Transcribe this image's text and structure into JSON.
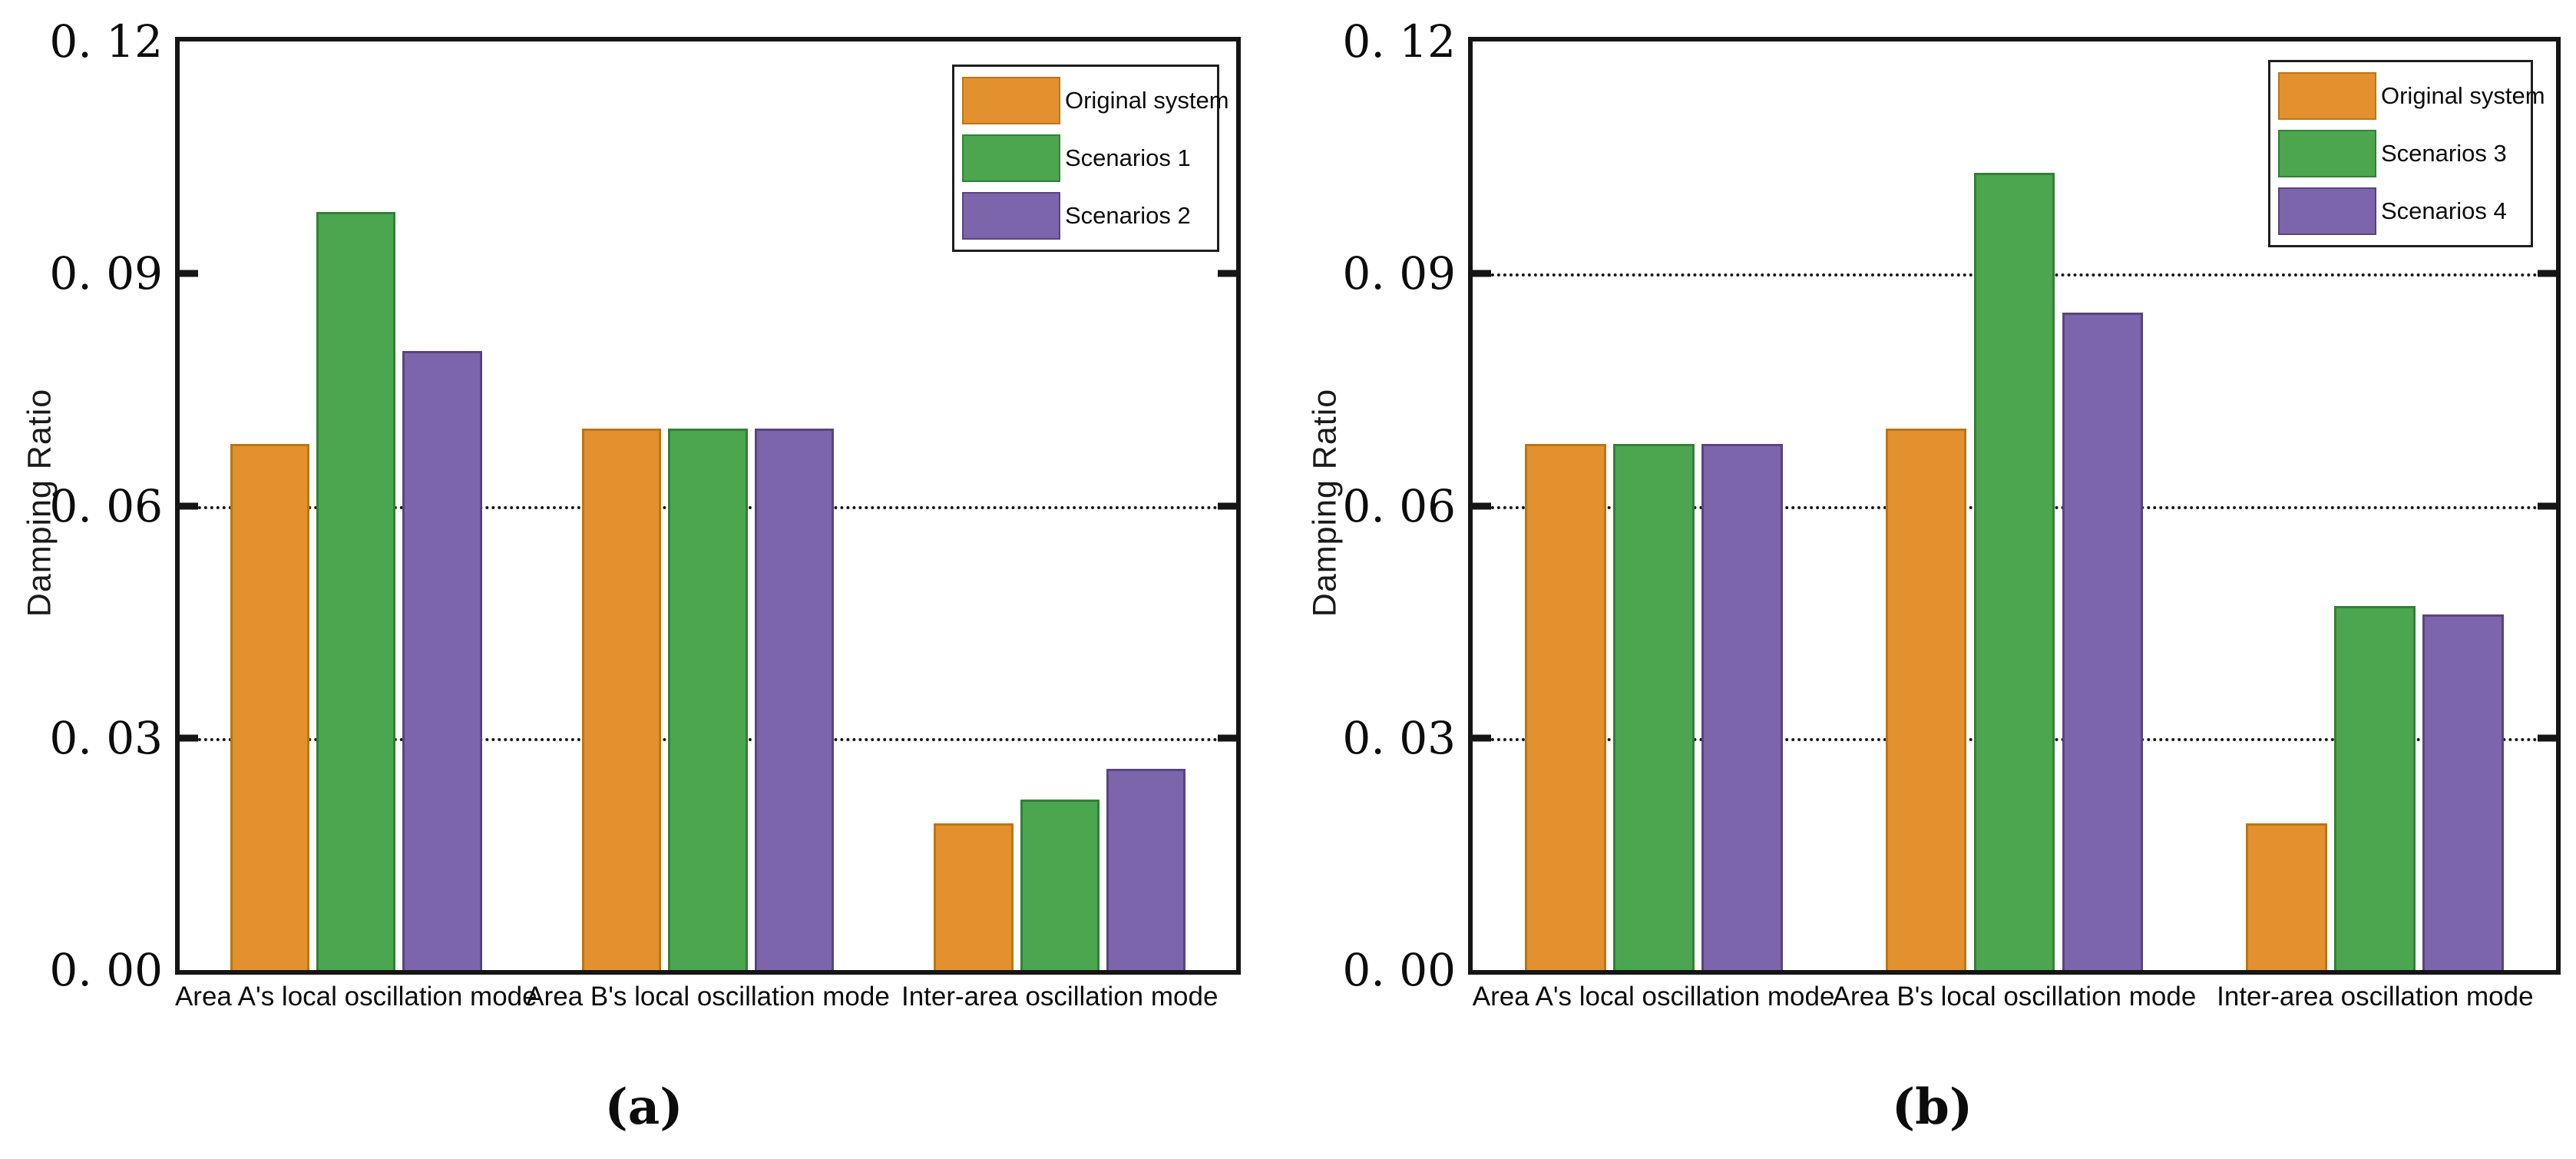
{
  "figure": {
    "background": "#ffffff"
  },
  "colors": {
    "orange": {
      "fill": "#E2912E",
      "border": "#BE7516"
    },
    "green": {
      "fill": "#4CA64F",
      "border": "#338038"
    },
    "purple": {
      "fill": "#7D65AC",
      "border": "#59457F"
    },
    "axis": "#151515",
    "text": "#0c0c0c"
  },
  "chart_data": [
    {
      "id": "a",
      "type": "bar",
      "title": "",
      "xlabel": "",
      "ylabel": "Damping Ratio",
      "ylim": [
        0,
        0.12
      ],
      "yticks": [
        {
          "value": 0.0,
          "label": "0. 00"
        },
        {
          "value": 0.03,
          "label": "0. 03"
        },
        {
          "value": 0.06,
          "label": "0. 06"
        },
        {
          "value": 0.09,
          "label": "0. 09"
        },
        {
          "value": 0.12,
          "label": "0. 12"
        }
      ],
      "gridlines": [
        0.03,
        0.06
      ],
      "grid_style": "dotted",
      "legend_position": "top-right",
      "categories": [
        "Area A's local oscillation mode",
        "Area B's local oscillation mode",
        "Inter-area oscillation mode"
      ],
      "series": [
        {
          "name": "Original system",
          "color_key": "orange",
          "values": [
            0.068,
            0.07,
            0.019
          ]
        },
        {
          "name": "Scenarios 1",
          "color_key": "green",
          "values": [
            0.098,
            0.07,
            0.022
          ]
        },
        {
          "name": "Scenarios 2",
          "color_key": "purple",
          "values": [
            0.08,
            0.07,
            0.026
          ]
        }
      ],
      "caption_label": "(a)"
    },
    {
      "id": "b",
      "type": "bar",
      "title": "",
      "xlabel": "",
      "ylabel": "Damping Ratio",
      "ylim": [
        0,
        0.12
      ],
      "yticks": [
        {
          "value": 0.0,
          "label": "0. 00"
        },
        {
          "value": 0.03,
          "label": "0. 03"
        },
        {
          "value": 0.06,
          "label": "0. 06"
        },
        {
          "value": 0.09,
          "label": "0. 09"
        },
        {
          "value": 0.12,
          "label": "0. 12"
        }
      ],
      "gridlines": [
        0.03,
        0.06,
        0.09
      ],
      "grid_style": "dotted",
      "legend_position": "top-right",
      "categories": [
        "Area A's local oscillation mode",
        "Area B's local oscillation mode",
        "Inter-area oscillation mode"
      ],
      "series": [
        {
          "name": "Original system",
          "color_key": "orange",
          "values": [
            0.068,
            0.07,
            0.019
          ]
        },
        {
          "name": "Scenarios 3",
          "color_key": "green",
          "values": [
            0.068,
            0.103,
            0.047
          ]
        },
        {
          "name": "Scenarios 4",
          "color_key": "purple",
          "values": [
            0.068,
            0.085,
            0.046
          ]
        }
      ],
      "caption_label": "(b)"
    }
  ]
}
